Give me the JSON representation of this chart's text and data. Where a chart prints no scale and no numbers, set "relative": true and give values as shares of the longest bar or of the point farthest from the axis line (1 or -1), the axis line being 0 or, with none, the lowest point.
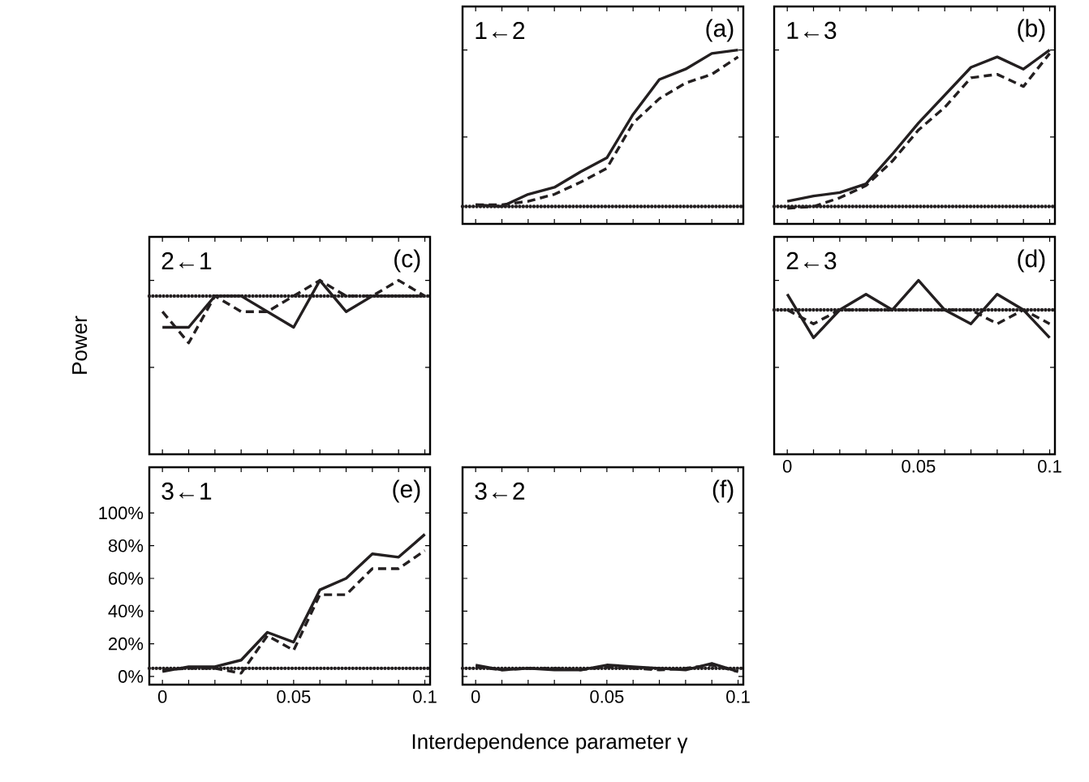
{
  "chart_data": [
    {
      "type": "line",
      "relative": true,
      "annotations": [
        "1←2",
        "(a)"
      ],
      "x": [
        0,
        0.01,
        0.02,
        0.03,
        0.04,
        0.05,
        0.06,
        0.07,
        0.08,
        0.09,
        0.1
      ],
      "xlim": [
        -0.005,
        0.102
      ],
      "xticks": [
        0,
        {
          "value": 0.01,
          "label": null
        },
        {
          "value": 0.02,
          "label": null
        },
        {
          "value": 0.03,
          "label": null
        },
        {
          "value": 0.04,
          "label": null
        },
        0.05,
        {
          "value": 0.06,
          "label": null
        },
        {
          "value": 0.07,
          "label": null
        },
        {
          "value": 0.08,
          "label": null
        },
        {
          "value": 0.09,
          "label": null
        },
        0.1
      ],
      "tick_labels": false,
      "series": [
        {
          "color": "#231f20",
          "line_style": "solid",
          "values": [
            0.11,
            0.1,
            0.17,
            0.21,
            0.3,
            0.38,
            0.63,
            0.83,
            0.89,
            0.98,
            1
          ]
        },
        {
          "color": "#231f20",
          "line_style": "dashed",
          "values": [
            0.11,
            0.11,
            0.13,
            0.17,
            0.24,
            0.32,
            0.58,
            0.72,
            0.81,
            0.86,
            0.96
          ]
        }
      ],
      "ref_lines": [
        {
          "axis": "y",
          "value": 0.1,
          "line_style": "dotted",
          "color": "#231f20"
        }
      ]
    },
    {
      "type": "line",
      "relative": true,
      "annotations": [
        "1←3",
        "(b)"
      ],
      "x": [
        0,
        0.01,
        0.02,
        0.03,
        0.04,
        0.05,
        0.06,
        0.07,
        0.08,
        0.09,
        0.1
      ],
      "xlim": [
        -0.005,
        0.102
      ],
      "xticks": [
        0,
        {
          "value": 0.01,
          "label": null
        },
        {
          "value": 0.02,
          "label": null
        },
        {
          "value": 0.03,
          "label": null
        },
        {
          "value": 0.04,
          "label": null
        },
        0.05,
        {
          "value": 0.06,
          "label": null
        },
        {
          "value": 0.07,
          "label": null
        },
        {
          "value": 0.08,
          "label": null
        },
        {
          "value": 0.09,
          "label": null
        },
        0.1
      ],
      "tick_labels": false,
      "series": [
        {
          "color": "#231f20",
          "line_style": "solid",
          "values": [
            0.13,
            0.16,
            0.18,
            0.23,
            0.4,
            0.58,
            0.74,
            0.9,
            0.96,
            0.89,
            1
          ]
        },
        {
          "color": "#231f20",
          "line_style": "dashed",
          "values": [
            0.09,
            0.1,
            0.15,
            0.22,
            0.36,
            0.54,
            0.67,
            0.84,
            0.86,
            0.79,
            0.98
          ]
        }
      ],
      "ref_lines": [
        {
          "axis": "y",
          "value": 0.1,
          "line_style": "dotted",
          "color": "#231f20"
        }
      ]
    },
    {
      "type": "line",
      "relative": true,
      "ylabel": "Power",
      "annotations": [
        "2←1",
        "(c)"
      ],
      "x": [
        0,
        0.01,
        0.02,
        0.03,
        0.04,
        0.05,
        0.06,
        0.07,
        0.08,
        0.09,
        0.1
      ],
      "xlim": [
        -0.005,
        0.102
      ],
      "xticks": [
        0,
        {
          "value": 0.01,
          "label": null
        },
        {
          "value": 0.02,
          "label": null
        },
        {
          "value": 0.03,
          "label": null
        },
        {
          "value": 0.04,
          "label": null
        },
        0.05,
        {
          "value": 0.06,
          "label": null
        },
        {
          "value": 0.07,
          "label": null
        },
        {
          "value": 0.08,
          "label": null
        },
        {
          "value": 0.09,
          "label": null
        },
        0.1
      ],
      "tick_labels": false,
      "series": [
        {
          "color": "#231f20",
          "line_style": "solid",
          "values": [
            0.73,
            0.73,
            0.91,
            0.91,
            0.82,
            0.73,
            1,
            0.82,
            0.91,
            0.91,
            0.91
          ]
        },
        {
          "color": "#231f20",
          "line_style": "dashed",
          "values": [
            0.82,
            0.64,
            0.91,
            0.82,
            0.82,
            0.91,
            1,
            0.91,
            0.91,
            1,
            0.91
          ]
        }
      ],
      "ref_lines": [
        {
          "axis": "y",
          "value": 0.91,
          "line_style": "dotted",
          "color": "#231f20"
        }
      ]
    },
    {
      "type": "line",
      "relative": true,
      "annotations": [
        "2←3",
        "(d)"
      ],
      "x": [
        0,
        0.01,
        0.02,
        0.03,
        0.04,
        0.05,
        0.06,
        0.07,
        0.08,
        0.09,
        0.1
      ],
      "xlim": [
        -0.005,
        0.102
      ],
      "xticks": [
        0,
        {
          "value": 0.01,
          "label": null
        },
        {
          "value": 0.02,
          "label": null
        },
        {
          "value": 0.03,
          "label": null
        },
        {
          "value": 0.04,
          "label": null
        },
        0.05,
        {
          "value": 0.06,
          "label": null
        },
        {
          "value": 0.07,
          "label": null
        },
        {
          "value": 0.08,
          "label": null
        },
        {
          "value": 0.09,
          "label": null
        },
        0.1
      ],
      "tick_labels": "x",
      "series": [
        {
          "color": "#231f20",
          "line_style": "solid",
          "values": [
            0.92,
            0.67,
            0.83,
            0.92,
            0.83,
            1,
            0.83,
            0.75,
            0.92,
            0.83,
            0.67
          ]
        },
        {
          "color": "#231f20",
          "line_style": "dashed",
          "values": [
            0.83,
            0.75,
            0.83,
            0.83,
            0.83,
            0.83,
            0.83,
            0.83,
            0.75,
            0.83,
            0.75
          ]
        }
      ],
      "ref_lines": [
        {
          "axis": "y",
          "value": 0.83,
          "line_style": "dotted",
          "color": "#231f20"
        }
      ]
    },
    {
      "type": "line",
      "xlabel": "Interdependence parameter γ",
      "annotations": [
        "3←1",
        "(e)"
      ],
      "x": [
        0,
        0.01,
        0.02,
        0.03,
        0.04,
        0.05,
        0.06,
        0.07,
        0.08,
        0.09,
        0.1
      ],
      "xlim": [
        -0.005,
        0.102
      ],
      "ylim": [
        -5,
        128
      ],
      "xticks": [
        0,
        {
          "value": 0.01,
          "label": null
        },
        {
          "value": 0.02,
          "label": null
        },
        {
          "value": 0.03,
          "label": null
        },
        {
          "value": 0.04,
          "label": null
        },
        0.05,
        {
          "value": 0.06,
          "label": null
        },
        {
          "value": 0.07,
          "label": null
        },
        {
          "value": 0.08,
          "label": null
        },
        {
          "value": 0.09,
          "label": null
        },
        0.1
      ],
      "yticks": [
        {
          "value": 0,
          "label": "0%"
        },
        {
          "value": 20,
          "label": "20%"
        },
        {
          "value": 40,
          "label": "40%"
        },
        {
          "value": 60,
          "label": "60%"
        },
        {
          "value": 80,
          "label": "80%"
        },
        {
          "value": 100,
          "label": "100%"
        }
      ],
      "series": [
        {
          "color": "#231f20",
          "line_style": "solid",
          "values": [
            3,
            6,
            6,
            10,
            27,
            21,
            53,
            60,
            75,
            73,
            87
          ]
        },
        {
          "color": "#231f20",
          "line_style": "dashed",
          "values": [
            4,
            5,
            5,
            2,
            25,
            16,
            50,
            50,
            66,
            66,
            77
          ]
        }
      ],
      "ref_lines": [
        {
          "axis": "y",
          "value": 5,
          "line_style": "dotted",
          "color": "#231f20"
        }
      ]
    },
    {
      "type": "line",
      "annotations": [
        "3←2",
        "(f)"
      ],
      "x": [
        0,
        0.01,
        0.02,
        0.03,
        0.04,
        0.05,
        0.06,
        0.07,
        0.08,
        0.09,
        0.1
      ],
      "xlim": [
        -0.005,
        0.102
      ],
      "ylim": [
        -5,
        128
      ],
      "xticks": [
        0,
        {
          "value": 0.01,
          "label": null
        },
        {
          "value": 0.02,
          "label": null
        },
        {
          "value": 0.03,
          "label": null
        },
        {
          "value": 0.04,
          "label": null
        },
        0.05,
        {
          "value": 0.06,
          "label": null
        },
        {
          "value": 0.07,
          "label": null
        },
        {
          "value": 0.08,
          "label": null
        },
        {
          "value": 0.09,
          "label": null
        },
        0.1
      ],
      "yticks": [
        {
          "value": 0,
          "label": null
        },
        {
          "value": 20,
          "label": null
        },
        {
          "value": 40,
          "label": null
        },
        {
          "value": 60,
          "label": null
        },
        {
          "value": 80,
          "label": null
        },
        {
          "value": 100,
          "label": null
        }
      ],
      "tick_labels": "x",
      "series": [
        {
          "color": "#231f20",
          "line_style": "solid",
          "values": [
            7,
            4,
            5,
            4,
            4,
            7,
            6,
            5,
            4,
            8,
            3
          ]
        },
        {
          "color": "#231f20",
          "line_style": "dashed",
          "values": [
            6,
            4,
            5,
            5,
            4,
            6,
            5,
            4,
            5,
            7,
            3
          ]
        }
      ],
      "ref_lines": [
        {
          "axis": "y",
          "value": 5,
          "line_style": "dotted",
          "color": "#231f20"
        }
      ]
    }
  ]
}
